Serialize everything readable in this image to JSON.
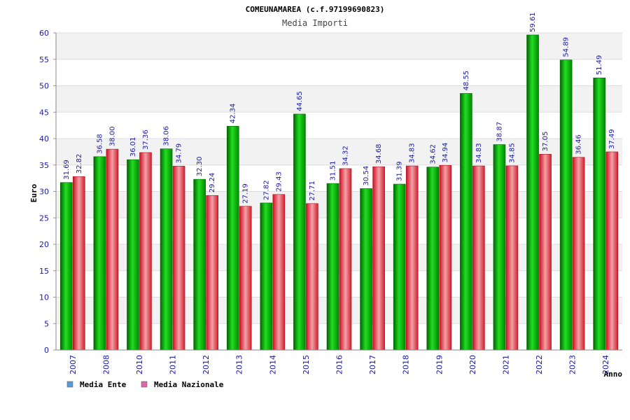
{
  "chart_data": {
    "type": "bar",
    "title": "COMEUNAMAREA (c.f.97199690823)",
    "subtitle": "Media Importi",
    "xlabel": "Anno",
    "ylabel": "Euro",
    "ylim": [
      0,
      60
    ],
    "yticks": [
      "0",
      "5",
      "10",
      "15",
      "20",
      "25",
      "30",
      "35",
      "40",
      "45",
      "50",
      "55",
      "60"
    ],
    "categories": [
      "2007",
      "2008",
      "2010",
      "2011",
      "2012",
      "2013",
      "2014",
      "2015",
      "2016",
      "2017",
      "2018",
      "2019",
      "2020",
      "2021",
      "2022",
      "2023",
      "2024"
    ],
    "series": [
      {
        "name": "Media Ente",
        "legend_color": "#5b9bd5",
        "bar_color": "#14b014",
        "values": [
          31.69,
          36.58,
          36.01,
          38.06,
          32.3,
          42.34,
          27.82,
          44.65,
          31.51,
          30.54,
          31.39,
          34.62,
          48.55,
          38.87,
          59.61,
          54.89,
          51.49
        ],
        "labels": [
          "31.69",
          "36.58",
          "36.01",
          "38.06",
          "32.30",
          "42.34",
          "27.82",
          "44.65",
          "31.51",
          "30.54",
          "31.39",
          "34.62",
          "48.55",
          "38.87",
          "59.61",
          "54.89",
          "51.49"
        ]
      },
      {
        "name": "Media Nazionale",
        "legend_color": "#d966a8",
        "bar_color": "#e8313c",
        "values": [
          32.82,
          38.0,
          37.36,
          34.79,
          29.24,
          27.19,
          29.43,
          27.71,
          34.32,
          34.68,
          34.83,
          34.94,
          34.83,
          34.85,
          37.05,
          36.46,
          37.49
        ],
        "labels": [
          "32.82",
          "38.00",
          "37.36",
          "34.79",
          "29.24",
          "27.19",
          "29.43",
          "27.71",
          "34.32",
          "34.68",
          "34.83",
          "34.94",
          "34.83",
          "34.85",
          "37.05",
          "36.46",
          "37.49"
        ]
      }
    ],
    "grid": true,
    "legend_position": "bottom-left"
  }
}
